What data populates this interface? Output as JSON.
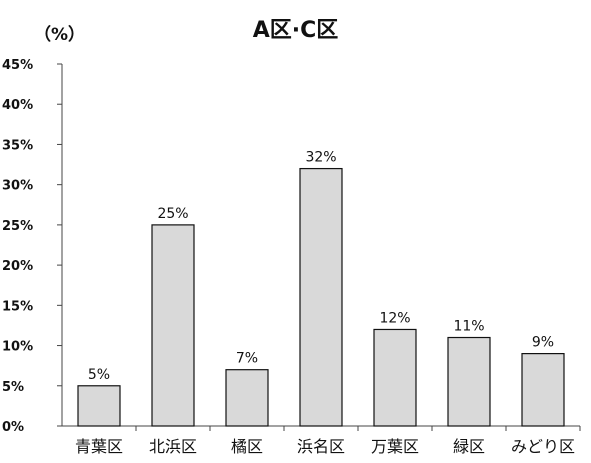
{
  "chart_data": {
    "type": "bar",
    "title": "A区·C区",
    "ylabel": "（%）",
    "xlabel": "",
    "categories": [
      "青葉区",
      "北浜区",
      "橘区",
      "浜名区",
      "万葉区",
      "緑区",
      "みどり区"
    ],
    "values": [
      5,
      25,
      7,
      32,
      12,
      11,
      9
    ],
    "data_labels": [
      "5%",
      "25%",
      "7%",
      "32%",
      "12%",
      "11%",
      "9%"
    ],
    "ylim": [
      0,
      45
    ],
    "y_ticks": [
      0,
      5,
      10,
      15,
      20,
      25,
      30,
      35,
      40,
      45
    ],
    "y_tick_labels": [
      "0%",
      "5%",
      "10%",
      "15%",
      "20%",
      "25%",
      "30%",
      "35%",
      "40%",
      "45%"
    ],
    "grid": false,
    "colors": {
      "bar_fill": "#d9d9d9",
      "bar_stroke": "#111111",
      "axis": "#444444",
      "text": "#111111"
    }
  }
}
